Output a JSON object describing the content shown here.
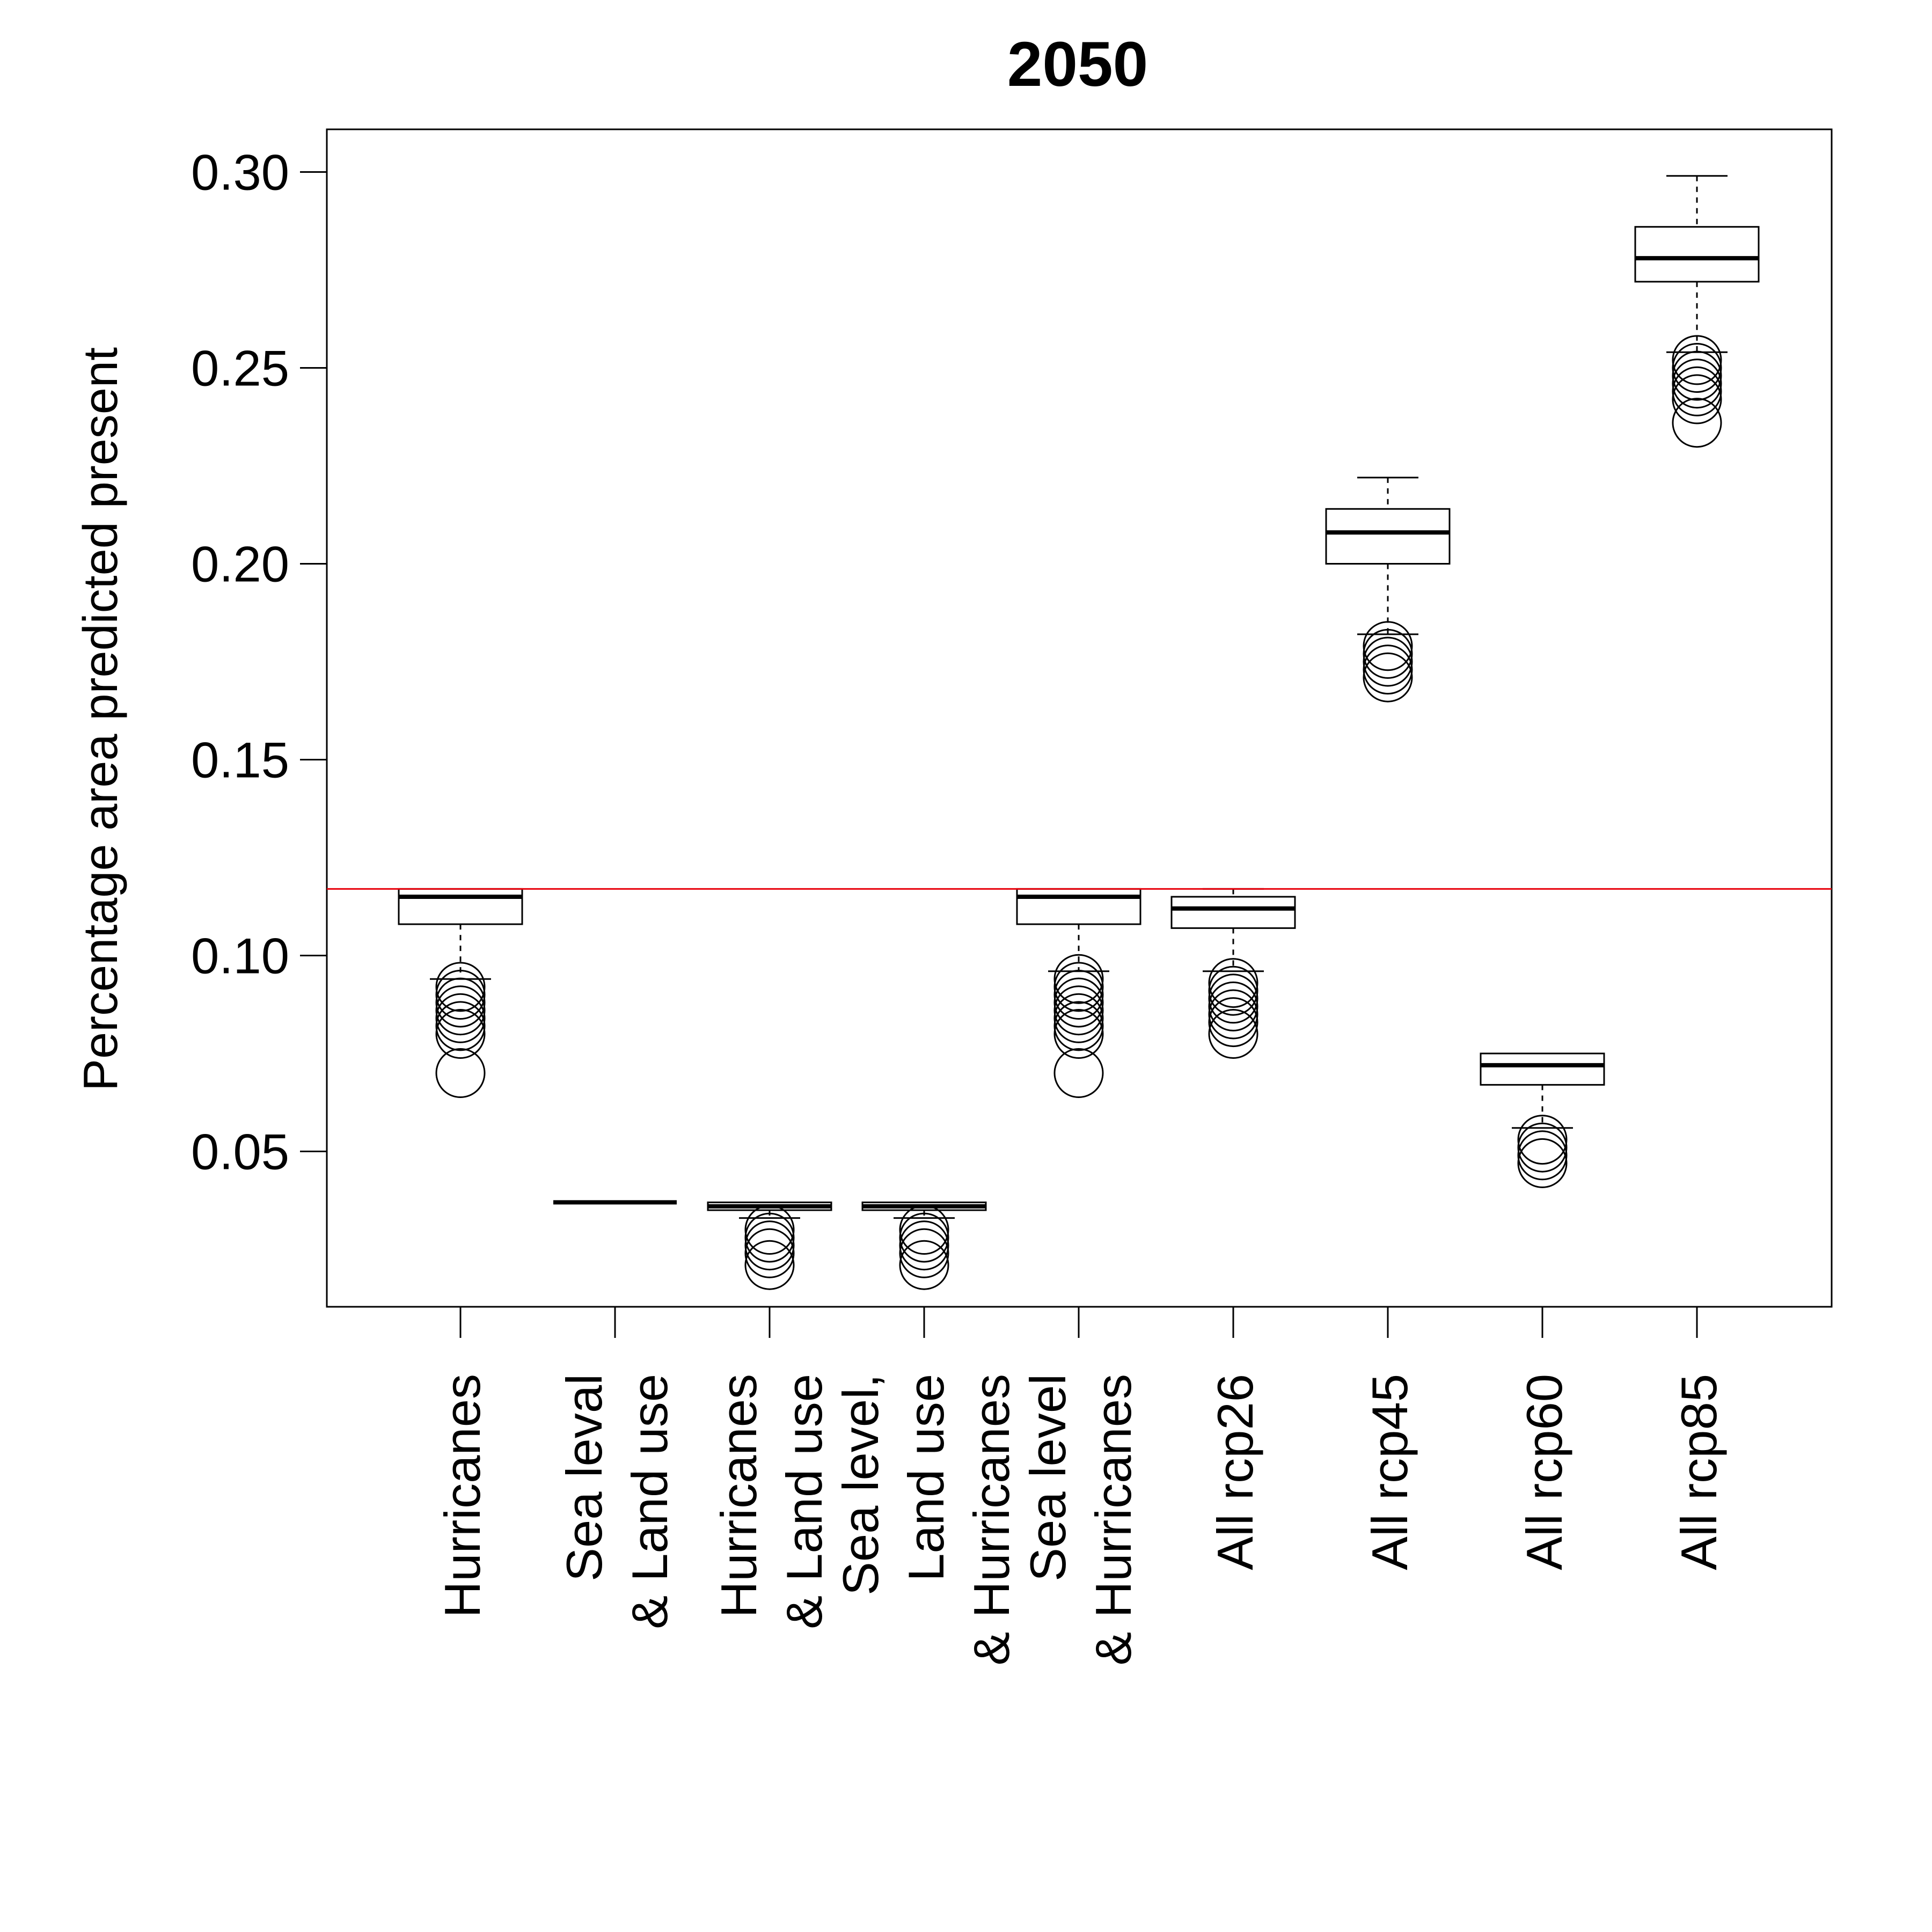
{
  "chart_data": {
    "type": "boxplot",
    "title": "2050",
    "xlabel": "",
    "ylabel": "Percentage area predicted present",
    "ylim": [
      0.011,
      0.311
    ],
    "yticks": [
      "0.30",
      "0.25",
      "0.20",
      "0.15",
      "0.10",
      "0.05"
    ],
    "reference_line": {
      "y": 0.117,
      "color": "#e8000b"
    },
    "categories": [
      [
        "Hurricanes"
      ],
      [
        "Sea leval",
        "& Land use"
      ],
      [
        "Hurricanes",
        "& Land use"
      ],
      [
        "Sea level,",
        "Land use",
        "& Hurricanes"
      ],
      [
        "Sea level",
        "& Hurricanes"
      ],
      [
        "All rcp26"
      ],
      [
        "All rcp45"
      ],
      [
        "All rcp60"
      ],
      [
        "All rcp85"
      ]
    ],
    "boxes": [
      {
        "lower_whisker": 0.094,
        "q1": 0.108,
        "median": 0.115,
        "q3": 0.117,
        "upper_whisker": 0.117,
        "outliers": [
          0.092,
          0.09,
          0.088,
          0.086,
          0.084,
          0.082,
          0.08,
          0.07
        ]
      },
      {
        "lower_whisker": 0.037,
        "q1": 0.037,
        "median": 0.037,
        "q3": 0.037,
        "upper_whisker": 0.037,
        "outliers": []
      },
      {
        "lower_whisker": 0.033,
        "q1": 0.035,
        "median": 0.036,
        "q3": 0.037,
        "upper_whisker": 0.037,
        "outliers": [
          0.03,
          0.028,
          0.026,
          0.024,
          0.021
        ]
      },
      {
        "lower_whisker": 0.033,
        "q1": 0.035,
        "median": 0.036,
        "q3": 0.037,
        "upper_whisker": 0.037,
        "outliers": [
          0.03,
          0.028,
          0.026,
          0.024,
          0.021
        ]
      },
      {
        "lower_whisker": 0.096,
        "q1": 0.108,
        "median": 0.115,
        "q3": 0.117,
        "upper_whisker": 0.117,
        "outliers": [
          0.094,
          0.092,
          0.09,
          0.088,
          0.086,
          0.084,
          0.082,
          0.08,
          0.07
        ]
      },
      {
        "lower_whisker": 0.096,
        "q1": 0.107,
        "median": 0.112,
        "q3": 0.115,
        "upper_whisker": 0.117,
        "outliers": [
          0.093,
          0.091,
          0.089,
          0.087,
          0.085,
          0.083,
          0.08
        ]
      },
      {
        "lower_whisker": 0.182,
        "q1": 0.2,
        "median": 0.208,
        "q3": 0.214,
        "upper_whisker": 0.222,
        "outliers": [
          0.179,
          0.177,
          0.175,
          0.173,
          0.171
        ]
      },
      {
        "lower_whisker": 0.056,
        "q1": 0.067,
        "median": 0.072,
        "q3": 0.075,
        "upper_whisker": 0.075,
        "outliers": [
          0.053,
          0.051,
          0.049,
          0.047
        ]
      },
      {
        "lower_whisker": 0.254,
        "q1": 0.272,
        "median": 0.278,
        "q3": 0.286,
        "upper_whisker": 0.299,
        "outliers": [
          0.252,
          0.25,
          0.248,
          0.246,
          0.244,
          0.242,
          0.236
        ]
      }
    ]
  }
}
